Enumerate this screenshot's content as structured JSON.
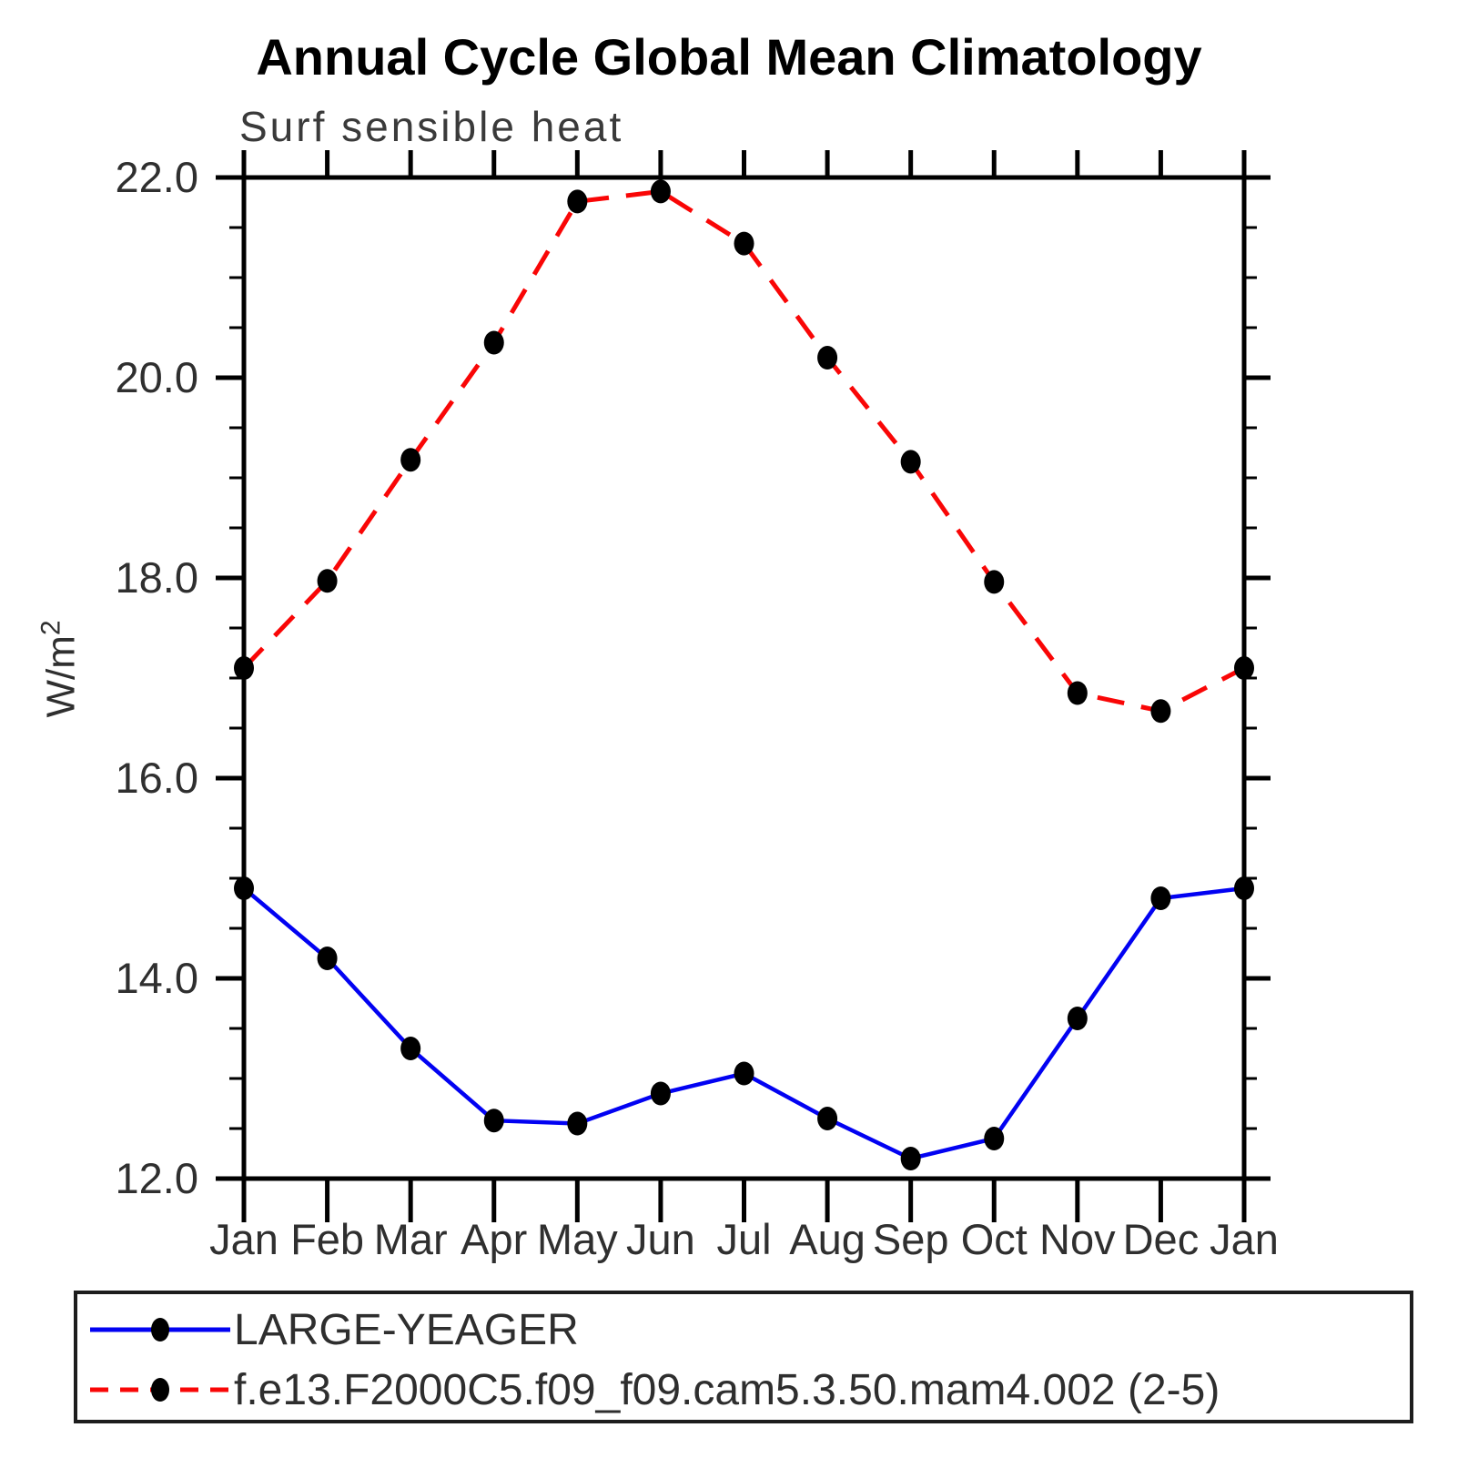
{
  "chart_data": {
    "type": "line",
    "title": "Annual Cycle Global Mean Climatology",
    "subtitle": "Surf sensible heat",
    "ylabel": "W/m²",
    "ylabel_base": "W/m",
    "ylabel_sup": "2",
    "ylim": [
      12.0,
      22.0
    ],
    "ytick_major_step": 2.0,
    "ytick_minor_step": 0.5,
    "ytick_labels": [
      "12.0",
      "14.0",
      "16.0",
      "18.0",
      "20.0",
      "22.0"
    ],
    "categories": [
      "Jan",
      "Feb",
      "Mar",
      "Apr",
      "May",
      "Jun",
      "Jul",
      "Aug",
      "Sep",
      "Oct",
      "Nov",
      "Dec",
      "Jan"
    ],
    "series": [
      {
        "name": "LARGE-YEAGER",
        "color": "#0202f2",
        "style": "solid",
        "marker": "circle",
        "marker_color": "#000000",
        "values": [
          14.9,
          14.2,
          13.3,
          12.58,
          12.55,
          12.85,
          13.05,
          12.6,
          12.2,
          12.4,
          13.6,
          14.8,
          14.9
        ]
      },
      {
        "name": "f.e13.F2000C5.f09_f09.cam5.3.50.mam4.002 (2-5)",
        "color": "#f90606",
        "style": "dashed",
        "marker": "circle",
        "marker_color": "#000000",
        "values": [
          17.1,
          17.97,
          19.18,
          20.35,
          21.76,
          21.86,
          21.34,
          20.2,
          19.16,
          17.96,
          16.85,
          16.67,
          17.1
        ]
      }
    ],
    "legend_position": "bottom-left",
    "grid": false,
    "axis_color": "#000000",
    "tick_label_color": "#2f2f2f"
  }
}
